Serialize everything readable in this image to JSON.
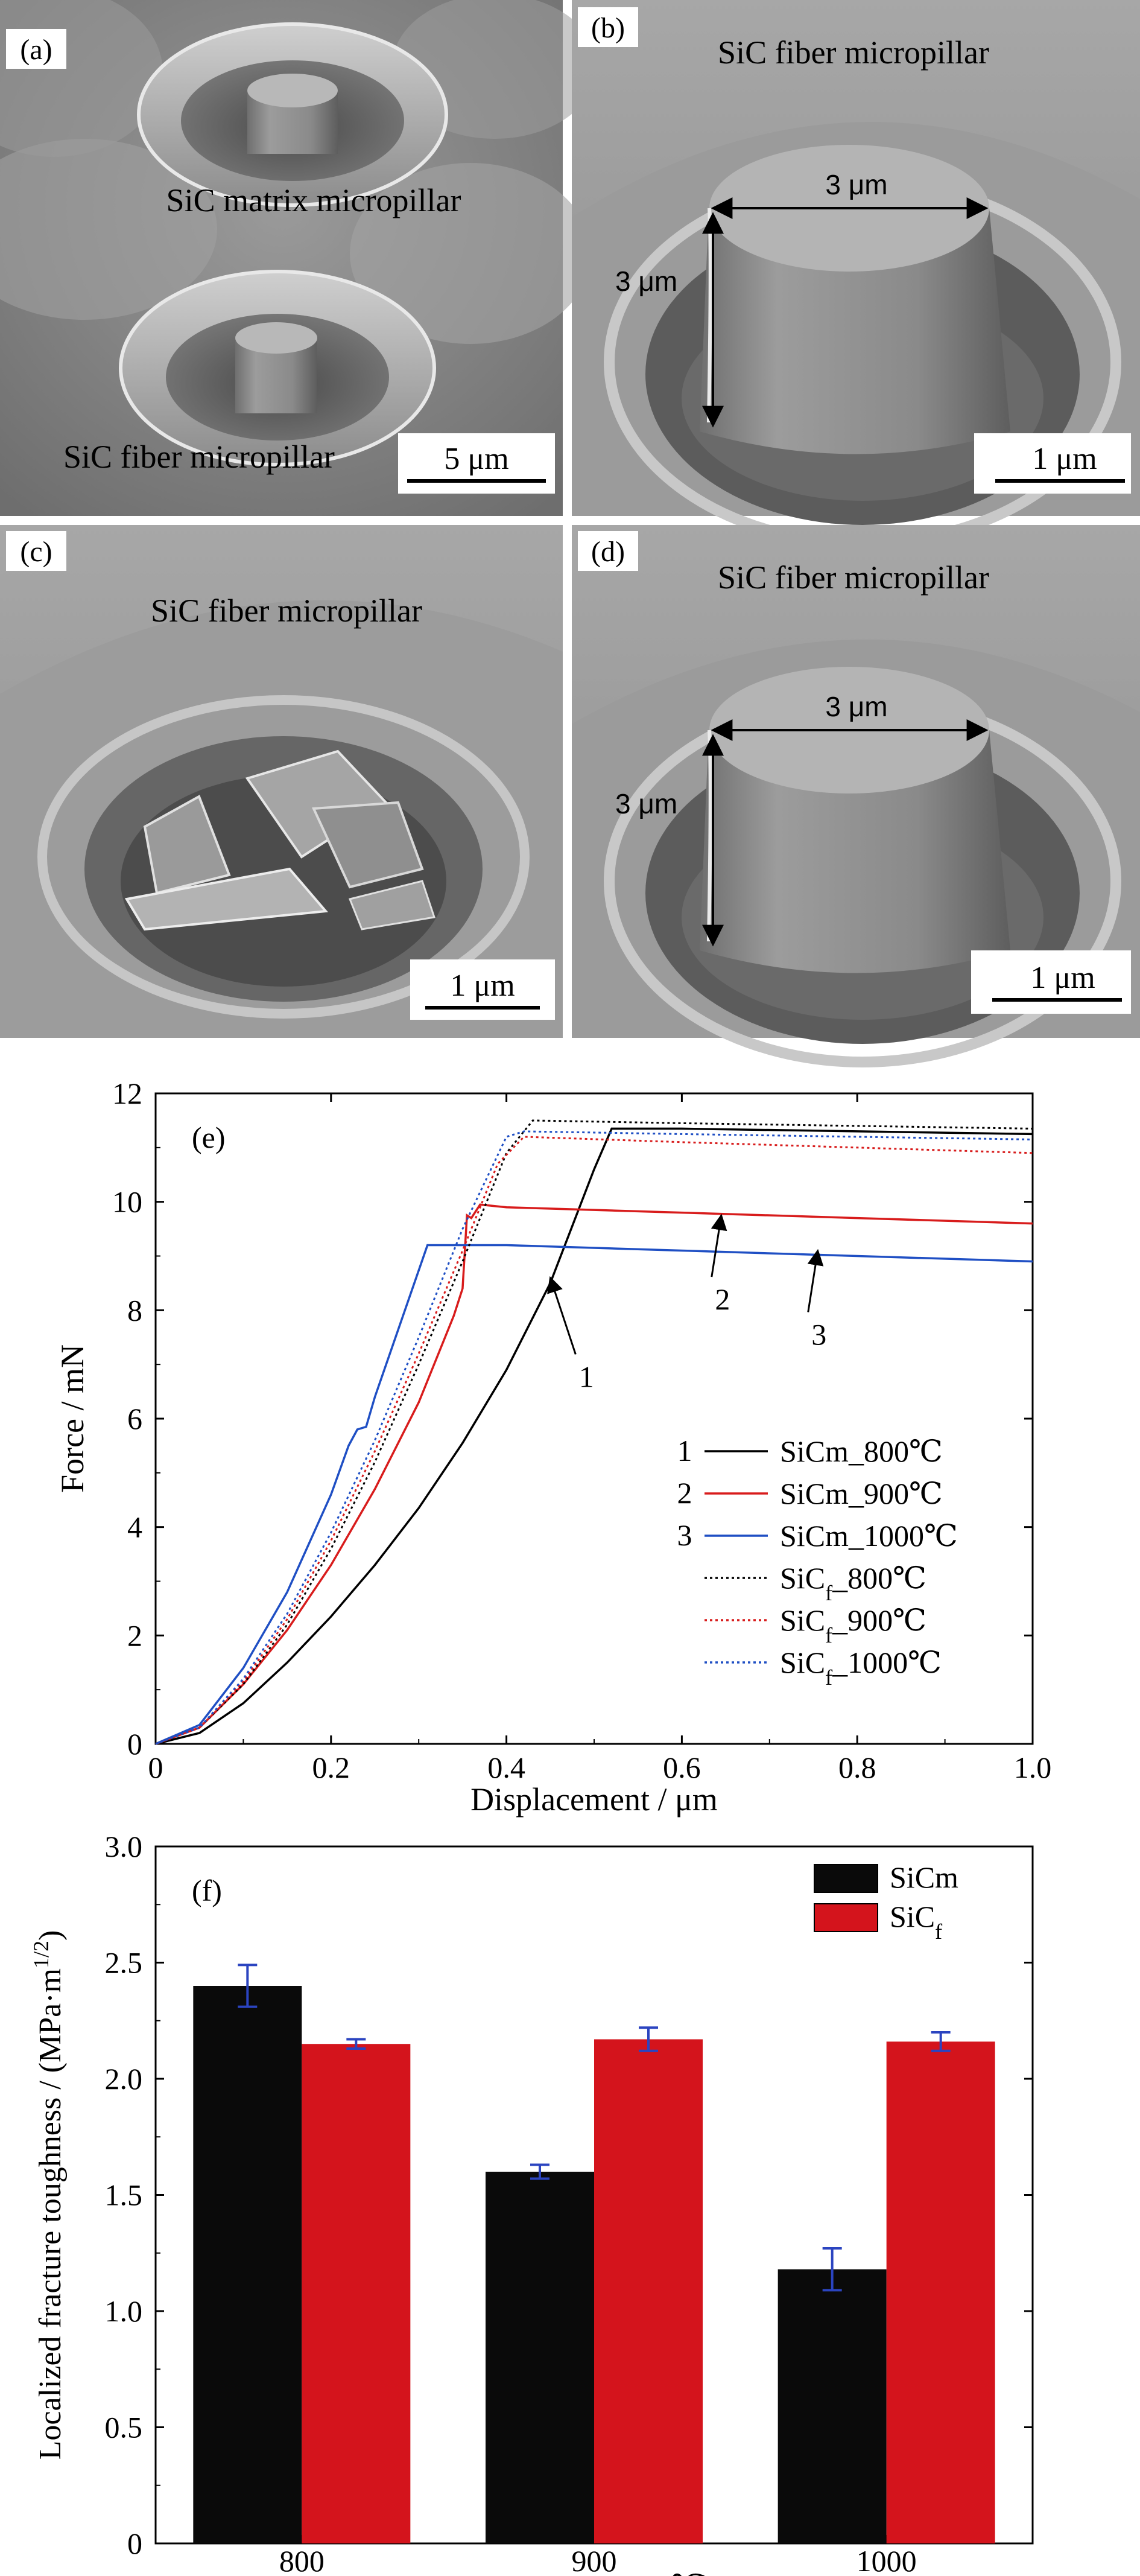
{
  "panels": {
    "a": {
      "tag": "(a)",
      "label_matrix": "SiC matrix micropillar",
      "label_fiber": "SiC fiber micropillar",
      "scale": "5 μm"
    },
    "b": {
      "tag": "(b)",
      "label": "SiC fiber micropillar",
      "dim_width": "3 μm",
      "dim_height": "3 μm",
      "scale": "1 μm"
    },
    "c": {
      "tag": "(c)",
      "label": "SiC fiber micropillar",
      "scale": "1 μm"
    },
    "d": {
      "tag": "(d)",
      "label": "SiC fiber micropillar",
      "dim_width": "3 μm",
      "dim_height": "3 μm",
      "scale": "1 μm"
    }
  },
  "colors": {
    "black": "#000000",
    "red": "#d81c1c",
    "blue": "#1f4fc4",
    "bar_black": "#0a0a0a",
    "bar_red": "#d4141c",
    "errbar": "#2b44c0"
  },
  "chart_data": [
    {
      "type": "line",
      "tag": "(e)",
      "xlabel": "Displacement / μm",
      "ylabel": "Force / mN",
      "xlim": [
        0,
        1.0
      ],
      "ylim": [
        0,
        12
      ],
      "xticks": [
        "0",
        "0.2",
        "0.4",
        "0.6",
        "0.8",
        "1.0"
      ],
      "yticks": [
        "0",
        "2",
        "4",
        "6",
        "8",
        "10",
        "12"
      ],
      "legend_position": "center-right",
      "annotations": [
        {
          "text": "1",
          "arrow_to": [
            0.45,
            8.6
          ]
        },
        {
          "text": "2",
          "arrow_to": [
            0.645,
            9.75
          ]
        },
        {
          "text": "3",
          "arrow_to": [
            0.755,
            9.1
          ]
        }
      ],
      "series": [
        {
          "name": "SiCm_800℃",
          "prefix": "1",
          "style": "solid",
          "color": "black",
          "points": [
            [
              0,
              0
            ],
            [
              0.05,
              0.2
            ],
            [
              0.1,
              0.75
            ],
            [
              0.15,
              1.5
            ],
            [
              0.2,
              2.35
            ],
            [
              0.25,
              3.3
            ],
            [
              0.3,
              4.35
            ],
            [
              0.35,
              5.55
            ],
            [
              0.4,
              6.9
            ],
            [
              0.45,
              8.5
            ],
            [
              0.5,
              10.6
            ],
            [
              0.52,
              11.35
            ],
            [
              0.6,
              11.35
            ],
            [
              0.8,
              11.3
            ],
            [
              1.0,
              11.25
            ]
          ]
        },
        {
          "name": "SiCm_900℃",
          "prefix": "2",
          "style": "solid",
          "color": "red",
          "points": [
            [
              0,
              0
            ],
            [
              0.05,
              0.3
            ],
            [
              0.1,
              1.1
            ],
            [
              0.15,
              2.1
            ],
            [
              0.2,
              3.3
            ],
            [
              0.25,
              4.7
            ],
            [
              0.3,
              6.3
            ],
            [
              0.34,
              7.9
            ],
            [
              0.35,
              8.4
            ],
            [
              0.355,
              9.75
            ],
            [
              0.36,
              9.7
            ],
            [
              0.37,
              9.95
            ],
            [
              0.4,
              9.9
            ],
            [
              0.6,
              9.8
            ],
            [
              0.8,
              9.7
            ],
            [
              1.0,
              9.6
            ]
          ]
        },
        {
          "name": "SiCm_1000℃",
          "prefix": "3",
          "style": "solid",
          "color": "blue",
          "points": [
            [
              0,
              0
            ],
            [
              0.05,
              0.35
            ],
            [
              0.1,
              1.4
            ],
            [
              0.15,
              2.8
            ],
            [
              0.2,
              4.6
            ],
            [
              0.22,
              5.5
            ],
            [
              0.23,
              5.8
            ],
            [
              0.24,
              5.85
            ],
            [
              0.25,
              6.4
            ],
            [
              0.28,
              7.8
            ],
            [
              0.31,
              9.2
            ],
            [
              0.4,
              9.2
            ],
            [
              0.6,
              9.1
            ],
            [
              0.8,
              9.0
            ],
            [
              1.0,
              8.9
            ]
          ]
        },
        {
          "name": "SiCf_800℃",
          "prefix": "",
          "style": "dotted",
          "color": "black",
          "points": [
            [
              0,
              0
            ],
            [
              0.05,
              0.3
            ],
            [
              0.1,
              1.1
            ],
            [
              0.15,
              2.2
            ],
            [
              0.2,
              3.6
            ],
            [
              0.25,
              5.2
            ],
            [
              0.3,
              7.0
            ],
            [
              0.35,
              8.9
            ],
            [
              0.4,
              10.9
            ],
            [
              0.43,
              11.5
            ],
            [
              0.6,
              11.45
            ],
            [
              0.8,
              11.4
            ],
            [
              1.0,
              11.35
            ]
          ]
        },
        {
          "name": "SiCf_900℃",
          "prefix": "",
          "style": "dotted",
          "color": "red",
          "points": [
            [
              0,
              0
            ],
            [
              0.05,
              0.3
            ],
            [
              0.1,
              1.15
            ],
            [
              0.15,
              2.3
            ],
            [
              0.2,
              3.75
            ],
            [
              0.25,
              5.4
            ],
            [
              0.3,
              7.2
            ],
            [
              0.35,
              9.1
            ],
            [
              0.39,
              10.7
            ],
            [
              0.42,
              11.2
            ],
            [
              0.6,
              11.1
            ],
            [
              0.8,
              11.0
            ],
            [
              1.0,
              10.9
            ]
          ]
        },
        {
          "name": "SiCf_1000℃",
          "prefix": "",
          "style": "dotted",
          "color": "blue",
          "points": [
            [
              0,
              0
            ],
            [
              0.05,
              0.3
            ],
            [
              0.1,
              1.2
            ],
            [
              0.15,
              2.4
            ],
            [
              0.2,
              3.9
            ],
            [
              0.25,
              5.6
            ],
            [
              0.3,
              7.5
            ],
            [
              0.35,
              9.5
            ],
            [
              0.4,
              11.2
            ],
            [
              0.42,
              11.3
            ],
            [
              0.6,
              11.25
            ],
            [
              0.8,
              11.2
            ],
            [
              1.0,
              11.15
            ]
          ]
        }
      ]
    },
    {
      "type": "bar",
      "tag": "(f)",
      "xlabel": "Temperature / ℃",
      "ylabel": "Localized fracture toughness / (MPa·m1/2)",
      "categories": [
        "800",
        "900",
        "1000"
      ],
      "ylim": [
        0,
        3.0
      ],
      "yticks": [
        "0",
        "0.5",
        "1.0",
        "1.5",
        "2.0",
        "2.5",
        "3.0"
      ],
      "legend_position": "top-right",
      "series": [
        {
          "name": "SiCm",
          "color": "bar_black",
          "values": [
            2.4,
            1.6,
            1.18
          ],
          "errors": [
            0.09,
            0.03,
            0.09
          ]
        },
        {
          "name": "SiCf",
          "color": "bar_red",
          "values": [
            2.15,
            2.17,
            2.16
          ],
          "errors": [
            0.02,
            0.05,
            0.04
          ]
        }
      ]
    }
  ]
}
